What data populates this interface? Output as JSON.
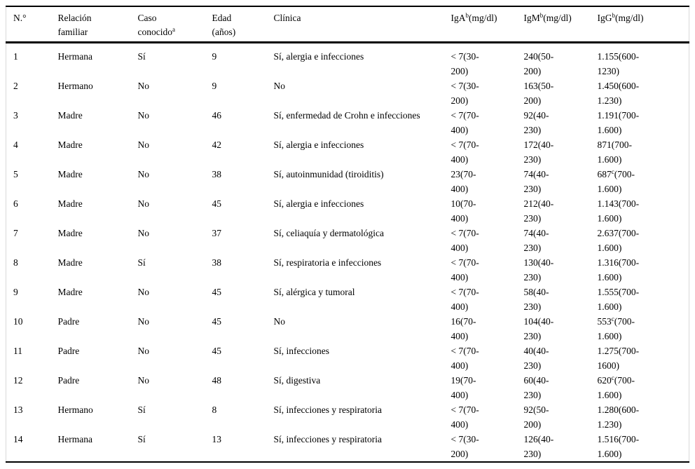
{
  "table": {
    "columns": [
      {
        "id": "num",
        "lines": [
          "N.°"
        ]
      },
      {
        "id": "relacion",
        "lines": [
          "Relación",
          "familiar"
        ]
      },
      {
        "id": "caso",
        "lines": [
          "Caso",
          "conocido"
        ],
        "sup": "a"
      },
      {
        "id": "edad",
        "lines": [
          "Edad",
          "(años)"
        ]
      },
      {
        "id": "clinica",
        "lines": [
          "Clínica"
        ]
      },
      {
        "id": "iga",
        "lines": [
          "IgA"
        ],
        "sup": "b",
        "unit": "(mg/dl)"
      },
      {
        "id": "igm",
        "lines": [
          "IgM"
        ],
        "sup": "b",
        "unit": "(mg/dl)"
      },
      {
        "id": "igg",
        "lines": [
          "IgG"
        ],
        "sup": "b",
        "unit": "(mg/dl)"
      }
    ],
    "rows": [
      {
        "num": "1",
        "relacion": "Hermana",
        "caso": "Sí",
        "edad": "9",
        "clinica": "Sí, alergia e infecciones",
        "iga": {
          "t": "< 7",
          "s": "",
          "r": "(30-200)"
        },
        "igm": {
          "t": "240",
          "s": "",
          "r": "(50-200)"
        },
        "igg": {
          "t": "1.155",
          "s": "",
          "r": "(600-1230)"
        }
      },
      {
        "num": "2",
        "relacion": "Hermano",
        "caso": "No",
        "edad": "9",
        "clinica": "No",
        "iga": {
          "t": "< 7",
          "s": "",
          "r": "(30-200)"
        },
        "igm": {
          "t": "163",
          "s": "",
          "r": "(50-200)"
        },
        "igg": {
          "t": "1.450",
          "s": "",
          "r": "(600-1.230)"
        }
      },
      {
        "num": "3",
        "relacion": "Madre",
        "caso": "No",
        "edad": "46",
        "clinica": "Sí, enfermedad de Crohn e infecciones",
        "iga": {
          "t": "< 7",
          "s": "",
          "r": "(70-400)"
        },
        "igm": {
          "t": "92",
          "s": "",
          "r": "(40-230)"
        },
        "igg": {
          "t": "1.191",
          "s": "",
          "r": "(700-1.600)"
        }
      },
      {
        "num": "4",
        "relacion": "Madre",
        "caso": "No",
        "edad": "42",
        "clinica": "Sí, alergia e infecciones",
        "iga": {
          "t": "< 7",
          "s": "",
          "r": "(70-400)"
        },
        "igm": {
          "t": "172",
          "s": "",
          "r": "(40-230)"
        },
        "igg": {
          "t": "871",
          "s": "",
          "r": "(700-1.600)"
        }
      },
      {
        "num": "5",
        "relacion": "Madre",
        "caso": "No",
        "edad": "38",
        "clinica": "Sí, autoinmunidad (tiroiditis)",
        "iga": {
          "t": "23",
          "s": "",
          "r": "(70-400)"
        },
        "igm": {
          "t": "74",
          "s": "",
          "r": "(40-230)"
        },
        "igg": {
          "t": "687",
          "s": "c",
          "r": "(700-1.600)"
        }
      },
      {
        "num": "6",
        "relacion": "Madre",
        "caso": "No",
        "edad": "45",
        "clinica": "Sí, alergia e infecciones",
        "iga": {
          "t": "10",
          "s": "",
          "r": "(70-400)"
        },
        "igm": {
          "t": "212",
          "s": "",
          "r": "(40-230)"
        },
        "igg": {
          "t": "1.143",
          "s": "",
          "r": "(700-1.600)"
        }
      },
      {
        "num": "7",
        "relacion": "Madre",
        "caso": "No",
        "edad": "37",
        "clinica": "Sí, celiaquía y dermatológica",
        "iga": {
          "t": "< 7",
          "s": "",
          "r": "(70-400)"
        },
        "igm": {
          "t": "74",
          "s": "",
          "r": "(40-230)"
        },
        "igg": {
          "t": "2.637",
          "s": "",
          "r": "(700-1.600)"
        }
      },
      {
        "num": "8",
        "relacion": "Madre",
        "caso": "Sí",
        "edad": "38",
        "clinica": "Sí, respiratoria e infecciones",
        "iga": {
          "t": "< 7",
          "s": "",
          "r": "(70-400)"
        },
        "igm": {
          "t": "130",
          "s": "",
          "r": "(40-230)"
        },
        "igg": {
          "t": "1.316",
          "s": "",
          "r": "(700-1.600)"
        }
      },
      {
        "num": "9",
        "relacion": "Madre",
        "caso": "No",
        "edad": "45",
        "clinica": "Sí, alérgica y tumoral",
        "iga": {
          "t": "< 7",
          "s": "",
          "r": "(70-400)"
        },
        "igm": {
          "t": "58",
          "s": "",
          "r": "(40-230)"
        },
        "igg": {
          "t": "1.555",
          "s": "",
          "r": "(700-1.600)"
        }
      },
      {
        "num": "10",
        "relacion": "Padre",
        "caso": "No",
        "edad": "45",
        "clinica": "No",
        "iga": {
          "t": "16",
          "s": "",
          "r": "(70-400)"
        },
        "igm": {
          "t": "104",
          "s": "",
          "r": "(40-230)"
        },
        "igg": {
          "t": "553",
          "s": "c",
          "r": "(700-1.600)"
        }
      },
      {
        "num": "11",
        "relacion": "Padre",
        "caso": "No",
        "edad": "45",
        "clinica": "Sí, infecciones",
        "iga": {
          "t": "< 7",
          "s": "",
          "r": "(70-400)"
        },
        "igm": {
          "t": "40",
          "s": "",
          "r": "(40-230)"
        },
        "igg": {
          "t": "1.275",
          "s": "",
          "r": "(700-1600)"
        }
      },
      {
        "num": "12",
        "relacion": "Padre",
        "caso": "No",
        "edad": "48",
        "clinica": "Sí, digestiva",
        "iga": {
          "t": "19",
          "s": "",
          "r": "(70-400)"
        },
        "igm": {
          "t": "60",
          "s": "",
          "r": "(40-230)"
        },
        "igg": {
          "t": "620",
          "s": "c",
          "r": "(700-1.600)"
        }
      },
      {
        "num": "13",
        "relacion": "Hermano",
        "caso": "Sí",
        "edad": "8",
        "clinica": "Sí, infecciones y respiratoria",
        "iga": {
          "t": "< 7",
          "s": "",
          "r": "(70-400)"
        },
        "igm": {
          "t": "92",
          "s": "",
          "r": "(50-200)"
        },
        "igg": {
          "t": "1.280",
          "s": "",
          "r": "(600-1.230)"
        }
      },
      {
        "num": "14",
        "relacion": "Hermana",
        "caso": "Sí",
        "edad": "13",
        "clinica": "Sí, infecciones y respiratoria",
        "iga": {
          "t": "< 7",
          "s": "",
          "r": "(30-200)"
        },
        "igm": {
          "t": "126",
          "s": "",
          "r": "(40-230)"
        },
        "igg": {
          "t": "1.516",
          "s": "",
          "r": "(700-1.600)"
        }
      }
    ]
  },
  "colors": {
    "rule": "#000000",
    "frame_side": "#d9d9d9",
    "text": "#000000",
    "background": "#ffffff"
  }
}
